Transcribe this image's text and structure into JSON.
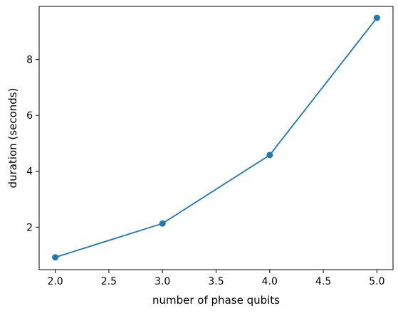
{
  "chart_data": {
    "type": "line",
    "title": "",
    "xlabel": "number of phase qubits",
    "ylabel": "duration (seconds)",
    "xlim": [
      1.85,
      5.15
    ],
    "ylim": [
      0.48,
      9.9
    ],
    "x_ticks": [
      2.0,
      2.5,
      3.0,
      3.5,
      4.0,
      4.5,
      5.0
    ],
    "x_tick_labels": [
      "2.0",
      "2.5",
      "3.0",
      "3.5",
      "4.0",
      "4.5",
      "5.0"
    ],
    "y_ticks": [
      2,
      4,
      6,
      8
    ],
    "y_tick_labels": [
      "2",
      "4",
      "6",
      "8"
    ],
    "grid": false,
    "legend": false,
    "series": [
      {
        "x": [
          2.0,
          3.0,
          4.0,
          5.0
        ],
        "y": [
          0.92,
          2.13,
          4.58,
          9.49
        ],
        "color": "#1f77b4",
        "marker": "circle"
      }
    ]
  }
}
